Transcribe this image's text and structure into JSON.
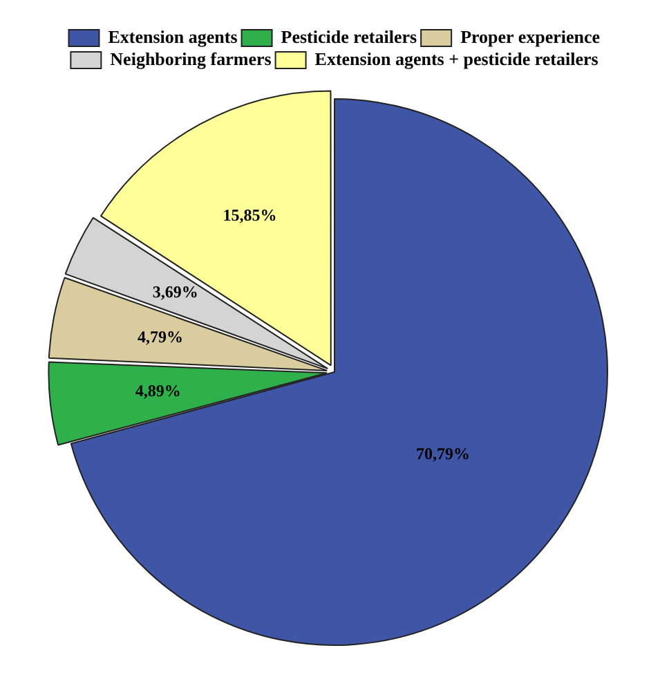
{
  "chart_data": {
    "type": "pie",
    "categories": [
      "Extension agents",
      "Pesticide retailers",
      "Proper experience",
      "Neighboring farmers",
      "Extension agents + pesticide retailers"
    ],
    "values": [
      70.79,
      4.89,
      4.79,
      3.69,
      15.85
    ],
    "colors": [
      "#3f55a6",
      "#2fb04a",
      "#d9cc9e",
      "#d4d4d4",
      "#ffff99"
    ],
    "value_labels": [
      "70,79%",
      "4,89%",
      "4,79%",
      "3,69%",
      "15,85%"
    ],
    "legend": "top"
  }
}
